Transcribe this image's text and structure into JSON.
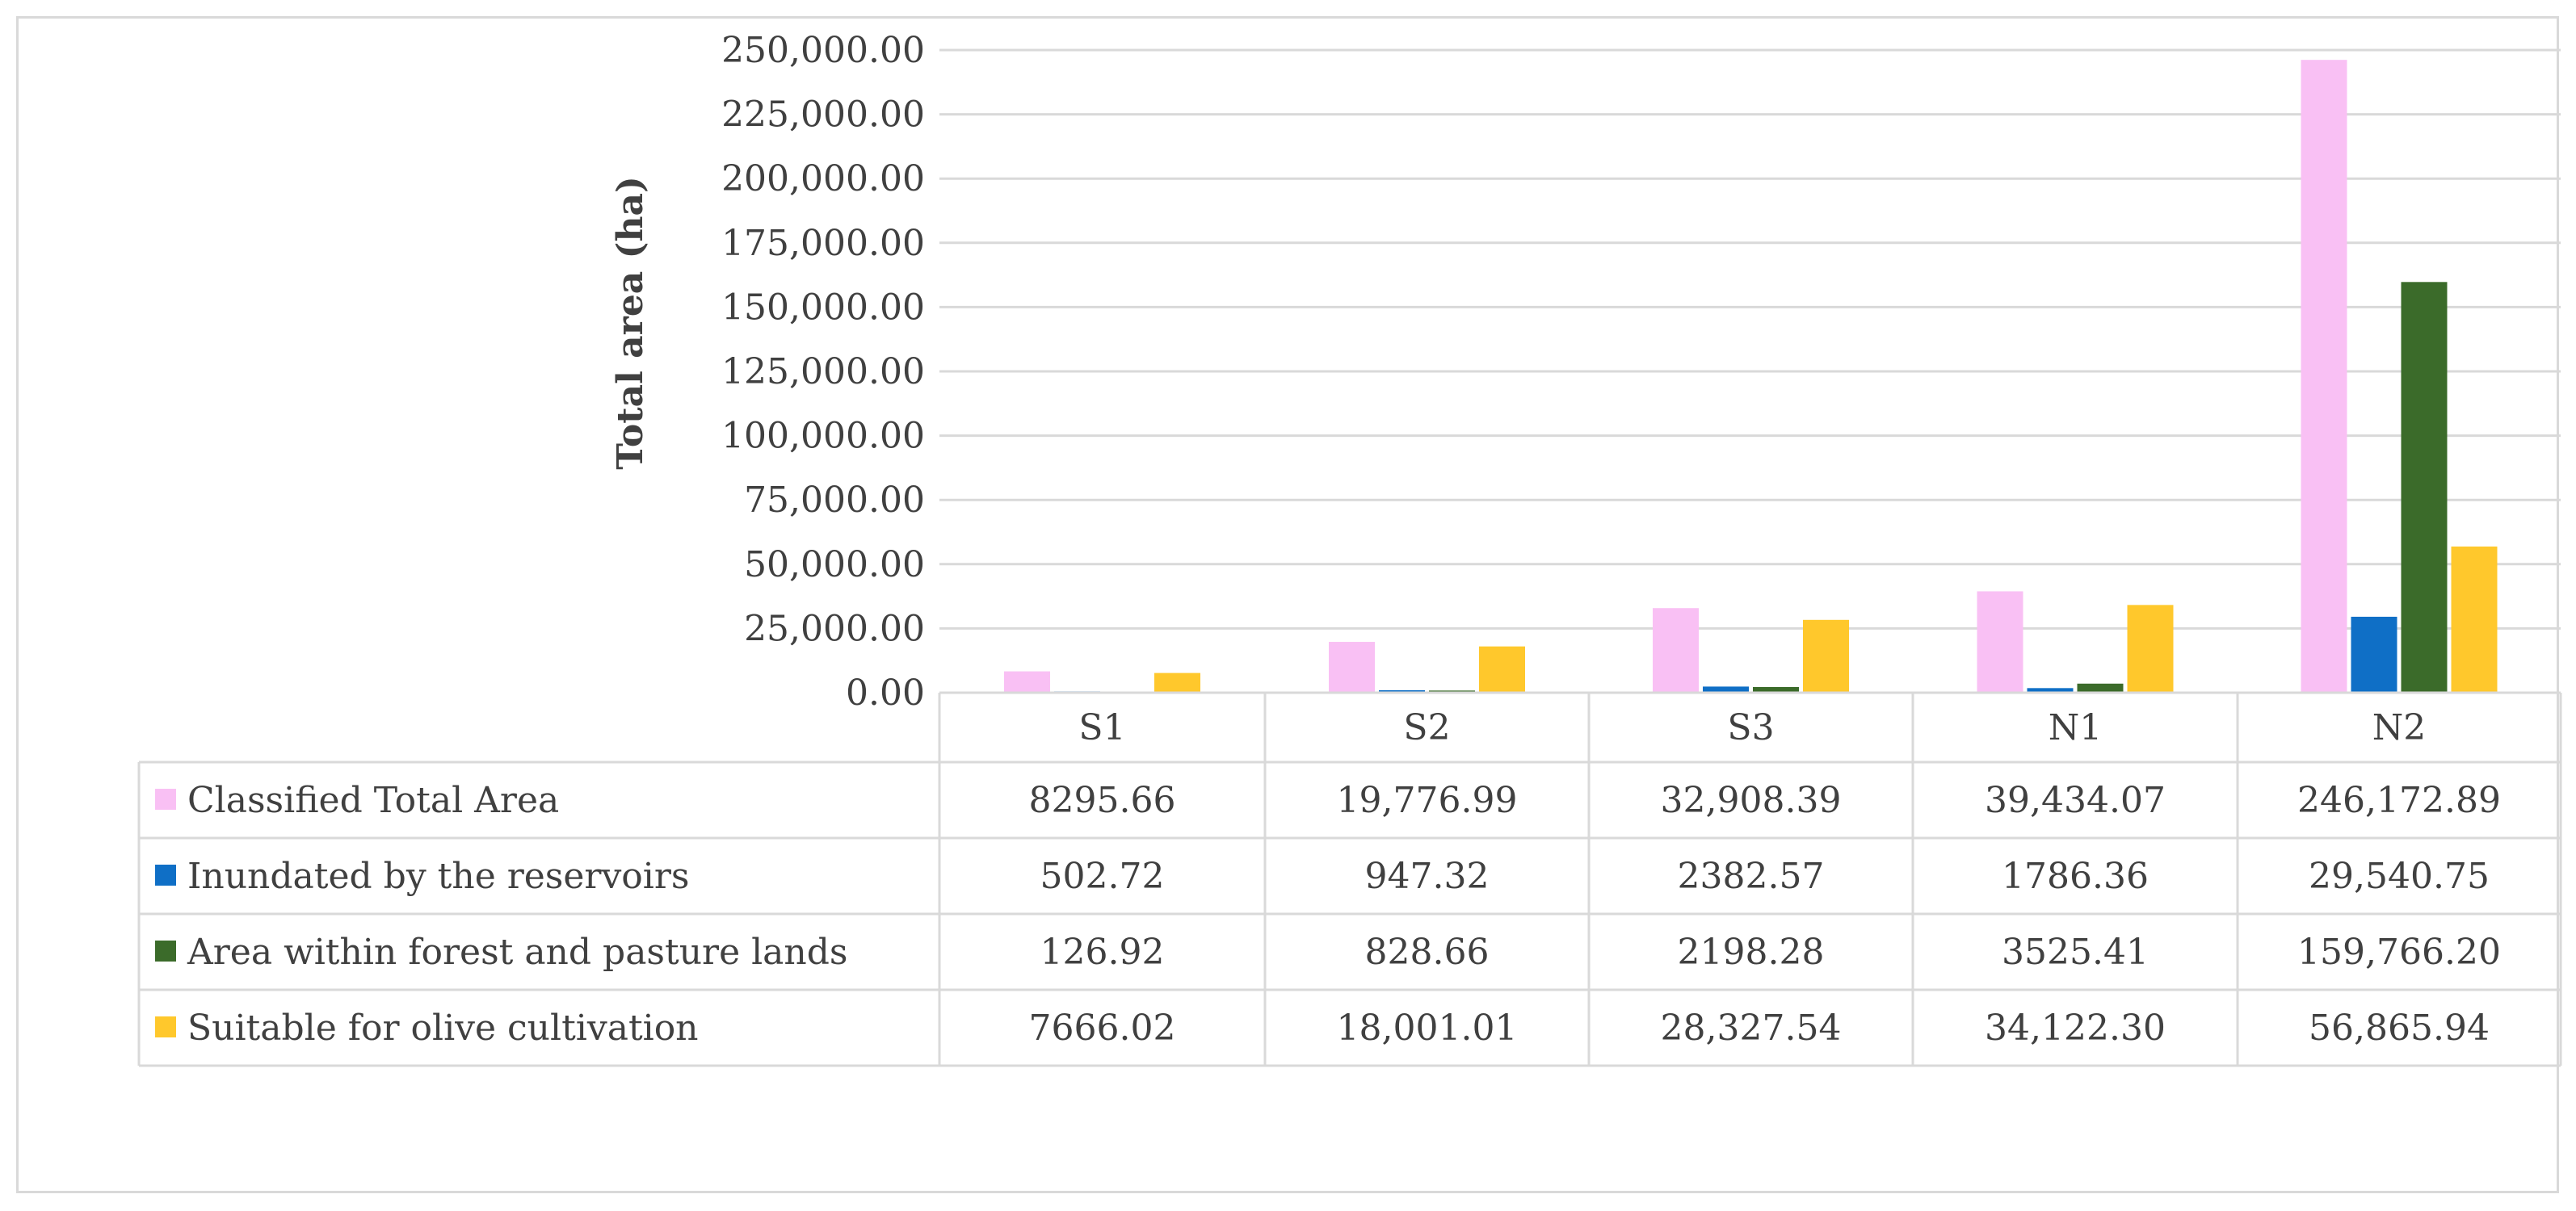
{
  "chart_data": {
    "type": "bar",
    "title": "",
    "xlabel": "",
    "ylabel": "Total area (ha)",
    "ylim": [
      0,
      250000
    ],
    "yticks": [
      0,
      25000,
      50000,
      75000,
      100000,
      125000,
      150000,
      175000,
      200000,
      225000,
      250000
    ],
    "ytick_labels": [
      "0.00",
      "25,000.00",
      "50,000.00",
      "75,000.00",
      "100,000.00",
      "125,000.00",
      "150,000.00",
      "175,000.00",
      "200,000.00",
      "225,000.00",
      "250,000.00"
    ],
    "grid": true,
    "legend": "data-table",
    "categories": [
      "S1",
      "S2",
      "S3",
      "N1",
      "N2"
    ],
    "series": [
      {
        "name": "Classified Total Area",
        "color": "#f9c0f4",
        "values": [
          8295.66,
          19776.99,
          32908.39,
          39434.07,
          246172.89
        ],
        "labels": [
          "8295.66",
          "19,776.99",
          "32,908.39",
          "39,434.07",
          "246,172.89"
        ]
      },
      {
        "name": "Inundated by the reservoirs",
        "color": "#0f6fc6",
        "values": [
          502.72,
          947.32,
          2382.57,
          1786.36,
          29540.75
        ],
        "labels": [
          "502.72",
          "947.32",
          "2382.57",
          "1786.36",
          "29,540.75"
        ]
      },
      {
        "name": "Area within forest and pasture lands",
        "color": "#3b6b2a",
        "values": [
          126.92,
          828.66,
          2198.28,
          3525.41,
          159766.2
        ],
        "labels": [
          "126.92",
          "828.66",
          "2198.28",
          "3525.41",
          "159,766.20"
        ]
      },
      {
        "name": "Suitable for olive  cultivation",
        "color": "#ffc82c",
        "values": [
          7666.02,
          18001.01,
          28327.54,
          34122.3,
          56865.94
        ],
        "labels": [
          "7666.02",
          "18,001.01",
          "28,327.54",
          "34,122.30",
          "56,865.94"
        ]
      }
    ]
  }
}
